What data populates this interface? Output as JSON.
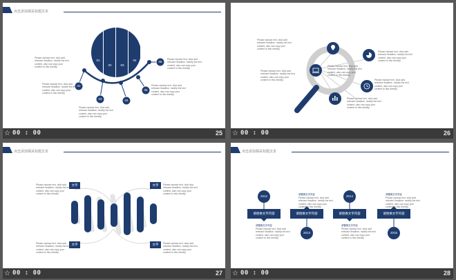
{
  "colors": {
    "accent": "#1e3c6e",
    "gray": "#cfcfcf",
    "page_bg": "#585858",
    "bar_bg": "#3a3a3a"
  },
  "slides": [
    {
      "number": "25",
      "time": "00 : 00",
      "header_title": "点击添加相关标题文本",
      "segments": [
        "01",
        "02",
        "03",
        "04"
      ],
      "nodes": [
        "02",
        "03",
        "04",
        "05",
        "06"
      ],
      "texts": [
        "Please replace text, click add relevant headline, modify the text content, also can copy your content to this directly.",
        "Please replace text, click add relevant headline, modify the text content, also can copy your content to this directly.",
        "Please replace text, click add relevant headline, modify the text content, also can copy your content to this directly.",
        "Please replace text, click add relevant headline, modify the text content, also can copy your content to this directly.",
        "Please replace text, click add relevant headline, modify the text content, also can copy your content to this directly."
      ]
    },
    {
      "number": "26",
      "time": "00 : 00",
      "icons": [
        "location-icon",
        "pie-chart-icon",
        "laptop-icon",
        "clock-icon",
        "bar-chart-icon"
      ],
      "texts": [
        "Please replace text, click add relevant headline, modify the text content, also can copy your content to this directly.",
        "Please replace text, click add relevant headline, modify the text content, also can copy your content to this directly.",
        "Please replace text, click add relevant headline, modify the text content, also can copy your content to this directly.",
        "Please replace text, click add relevant headline, modify the text content, also can copy your content to this directly.",
        "Please replace text, click add relevant headline, modify the text content, also can copy your content to this directly.",
        "Please replace text, click add relevant headline, modify the text content, also can copy your content to this directly."
      ]
    },
    {
      "number": "27",
      "time": "00 : 00",
      "header_title": "点击添加相关标题文本",
      "labels": [
        "文字",
        "文字",
        "文字",
        "文字"
      ],
      "texts": [
        "Please replace text, click add relevant headline, modify the text content, also can copy your content to this directly.",
        "Please replace text, click add relevant headline, modify the text content, also can copy your content to this directly.",
        "Please replace text, click add relevant headline, modify the text content, also can copy your content to this directly.",
        "Please replace text, click add relevant headline, modify the text content, also can copy your content to this directly."
      ]
    },
    {
      "number": "28",
      "time": "00 : 00",
      "header_title": "点击添加相关标题文本",
      "years": [
        "2012",
        "2013",
        "2014",
        "2015"
      ],
      "box_label": "请替换文字内容",
      "caption_title": "请替换文字内容",
      "texts": [
        "Please replace text, click add relevant headline, modify the text content, also can copy your content to this directly.",
        "Please replace text, click add relevant headline, modify the text content, also can copy your content to this directly.",
        "Please replace text, click add relevant headline, modify the text content, also can copy your content to this directly.",
        "Please replace text, click add relevant headline, modify the text content, also can copy your content to this directly."
      ]
    }
  ]
}
